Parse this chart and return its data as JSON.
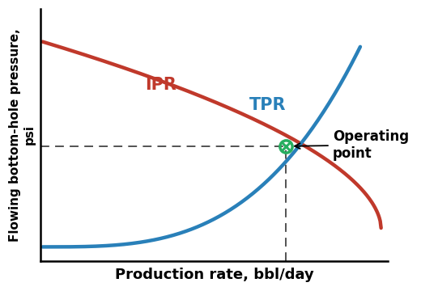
{
  "xlabel": "Production rate, bbl/day",
  "ylabel": "Flowing bottom-hole pressure,\npsi",
  "ipr_label": "IPR",
  "tpr_label": "TPR",
  "op_label_line1": "Operating",
  "op_label_line2": "point",
  "ipr_color": "#c0392b",
  "tpr_color": "#2980b9",
  "op_color": "#27ae60",
  "dashed_color": "#444444",
  "xlabel_fontsize": 13,
  "ylabel_fontsize": 11,
  "label_fontsize": 15,
  "op_label_fontsize": 12,
  "background_color": "#ffffff",
  "xlim": [
    0,
    10
  ],
  "ylim": [
    0,
    10
  ],
  "op_x": 7.05,
  "op_y": 4.55
}
